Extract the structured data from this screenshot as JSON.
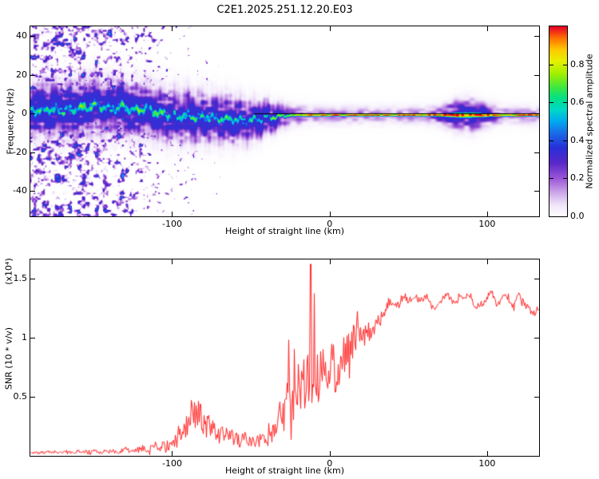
{
  "figure_title": "C2E1.2025.251.12.20.E03",
  "chart_data": [
    {
      "type": "heatmap",
      "title": "C2E1.2025.251.12.20.E03",
      "xlabel": "Height of straight line (km)",
      "ylabel": "Frequency (Hz)",
      "xlim": [
        -190,
        133
      ],
      "ylim": [
        -53,
        45
      ],
      "xticks": [
        "-100",
        "0",
        "100"
      ],
      "xtick_values": [
        -100,
        0,
        100
      ],
      "yticks": [
        "-40",
        "-20",
        "0",
        "20",
        "40"
      ],
      "ytick_values": [
        -40,
        -20,
        0,
        20,
        40
      ],
      "colorbar": {
        "label": "Normalized spectral amplitude",
        "tick_labels": [
          "0.0",
          "0.2",
          "0.4",
          "0.6",
          "0.8"
        ],
        "tick_values": [
          0,
          0.2,
          0.4,
          0.6,
          0.8
        ],
        "range": [
          0,
          1
        ]
      },
      "colormap": [
        [
          0.0,
          "#ffffff"
        ],
        [
          0.06,
          "#f0e4fa"
        ],
        [
          0.13,
          "#c9a0e8"
        ],
        [
          0.2,
          "#9a55d8"
        ],
        [
          0.28,
          "#5a28c8"
        ],
        [
          0.36,
          "#2830d8"
        ],
        [
          0.44,
          "#1b6ee8"
        ],
        [
          0.5,
          "#00aaf0"
        ],
        [
          0.56,
          "#00d8c8"
        ],
        [
          0.62,
          "#00e08a"
        ],
        [
          0.68,
          "#40e840"
        ],
        [
          0.75,
          "#a0f000"
        ],
        [
          0.82,
          "#e8f000"
        ],
        [
          0.88,
          "#ffc800"
        ],
        [
          0.94,
          "#ff7000"
        ],
        [
          1.0,
          "#e80028"
        ]
      ],
      "ridge_centerline": [
        [
          -190,
          1.5
        ],
        [
          -176,
          2.5
        ],
        [
          -166,
          1.2
        ],
        [
          -156,
          3.0
        ],
        [
          -148,
          4.2
        ],
        [
          -140,
          2.2
        ],
        [
          -132,
          3.4
        ],
        [
          -125,
          1.6
        ],
        [
          -118,
          2.6
        ],
        [
          -111,
          1.0
        ],
        [
          -104,
          -0.6
        ],
        [
          -97,
          -1.8
        ],
        [
          -90,
          -1.0
        ],
        [
          -84,
          -2.4
        ],
        [
          -78,
          -1.6
        ],
        [
          -72,
          -2.6
        ],
        [
          -66,
          -3.4
        ],
        [
          -60,
          -3.0
        ],
        [
          -54,
          -4.0
        ],
        [
          -48,
          -3.4
        ],
        [
          -43,
          -2.6
        ],
        [
          -38,
          -2.0
        ],
        [
          -33,
          -1.5
        ],
        [
          -28,
          -1.1
        ],
        [
          -24,
          -0.8
        ],
        [
          -20,
          -0.7
        ],
        [
          -14,
          -0.75
        ],
        [
          0,
          -0.8
        ],
        [
          133,
          -0.8
        ]
      ],
      "ridge_width_hz": [
        [
          -190,
          3.2
        ],
        [
          -150,
          3.4
        ],
        [
          -120,
          3.2
        ],
        [
          -100,
          3.0
        ],
        [
          -80,
          2.9
        ],
        [
          -60,
          2.6
        ],
        [
          -50,
          2.3
        ],
        [
          -40,
          1.8
        ],
        [
          -32,
          1.3
        ],
        [
          -25,
          1.0
        ],
        [
          -15,
          0.85
        ],
        [
          0,
          0.7
        ],
        [
          40,
          0.7
        ],
        [
          70,
          0.8
        ],
        [
          80,
          1.5
        ],
        [
          90,
          1.7
        ],
        [
          100,
          1.1
        ],
        [
          110,
          0.8
        ],
        [
          133,
          0.75
        ]
      ],
      "ridge_amplitude": [
        [
          -190,
          0.58
        ],
        [
          -160,
          0.62
        ],
        [
          -140,
          0.66
        ],
        [
          -120,
          0.64
        ],
        [
          -100,
          0.6
        ],
        [
          -80,
          0.62
        ],
        [
          -60,
          0.58
        ],
        [
          -50,
          0.56
        ],
        [
          -40,
          0.62
        ],
        [
          -30,
          0.72
        ],
        [
          -22,
          0.82
        ],
        [
          -12,
          0.92
        ],
        [
          0,
          0.97
        ],
        [
          133,
          0.97
        ]
      ],
      "halo_scale": [
        [
          -190,
          1
        ],
        [
          -40,
          1
        ],
        [
          -25,
          0.5
        ],
        [
          -10,
          0.35
        ],
        [
          60,
          0.3
        ],
        [
          75,
          0.9
        ],
        [
          95,
          0.9
        ],
        [
          108,
          0.35
        ],
        [
          133,
          0.3
        ]
      ],
      "noise_density": [
        [
          -190,
          0.85
        ],
        [
          -160,
          0.82
        ],
        [
          -140,
          0.78
        ],
        [
          -125,
          0.68
        ],
        [
          -112,
          0.55
        ],
        [
          -100,
          0.45
        ],
        [
          -88,
          0.36
        ],
        [
          -75,
          0.26
        ],
        [
          -62,
          0.16
        ],
        [
          -52,
          0.09
        ],
        [
          -44,
          0.05
        ],
        [
          -36,
          0.02
        ],
        [
          -30,
          0
        ],
        [
          133,
          0
        ]
      ],
      "zero_line_km": [
        -48,
        133
      ]
    },
    {
      "type": "line",
      "title": "",
      "series_color": "#ff2020",
      "xlabel": "Height of straight line (km)",
      "ylabel": "SNR (10 * v/v)",
      "y_scale_label": "(x10⁴)",
      "xlim": [
        -190,
        133
      ],
      "ylim": [
        0,
        1.66
      ],
      "xticks": [
        "-100",
        "0",
        "100"
      ],
      "xtick_values": [
        -100,
        0,
        100
      ],
      "yticks": [
        "0.5",
        "1",
        "1.5"
      ],
      "ytick_values": [
        0.5,
        1,
        1.5
      ],
      "envelope": [
        [
          -190,
          0.03,
          0.02
        ],
        [
          -170,
          0.03,
          0.02
        ],
        [
          -150,
          0.035,
          0.03
        ],
        [
          -135,
          0.04,
          0.03
        ],
        [
          -122,
          0.05,
          0.04
        ],
        [
          -112,
          0.07,
          0.05
        ],
        [
          -104,
          0.09,
          0.07
        ],
        [
          -97,
          0.13,
          0.1
        ],
        [
          -90,
          0.3,
          0.18
        ],
        [
          -84,
          0.38,
          0.2
        ],
        [
          -79,
          0.28,
          0.16
        ],
        [
          -73,
          0.2,
          0.12
        ],
        [
          -66,
          0.17,
          0.1
        ],
        [
          -60,
          0.15,
          0.1
        ],
        [
          -53,
          0.13,
          0.1
        ],
        [
          -47,
          0.12,
          0.1
        ],
        [
          -42,
          0.14,
          0.12
        ],
        [
          -37,
          0.16,
          0.14
        ],
        [
          -32,
          0.3,
          0.22
        ],
        [
          -27,
          0.45,
          0.3
        ],
        [
          -22,
          0.5,
          0.32
        ],
        [
          -17,
          0.6,
          0.38
        ],
        [
          -13,
          0.65,
          0.42
        ],
        [
          -9,
          0.7,
          0.38
        ],
        [
          -5,
          0.72,
          0.32
        ],
        [
          0,
          0.7,
          0.3
        ],
        [
          4,
          0.78,
          0.32
        ],
        [
          9,
          0.85,
          0.3
        ],
        [
          14,
          0.92,
          0.28
        ],
        [
          19,
          1.0,
          0.22
        ],
        [
          24,
          1.08,
          0.16
        ],
        [
          29,
          1.15,
          0.12
        ],
        [
          35,
          1.22,
          0.08
        ],
        [
          42,
          1.26,
          0.06
        ],
        [
          50,
          1.29,
          0.05
        ],
        [
          60,
          1.31,
          0.05
        ],
        [
          70,
          1.33,
          0.04
        ],
        [
          80,
          1.33,
          0.04
        ],
        [
          90,
          1.31,
          0.04
        ],
        [
          97,
          1.27,
          0.05
        ],
        [
          103,
          1.29,
          0.05
        ],
        [
          110,
          1.33,
          0.04
        ],
        [
          120,
          1.31,
          0.04
        ],
        [
          133,
          1.3,
          0.05
        ]
      ],
      "spikes": [
        [
          -12,
          1.62
        ],
        [
          -26,
          0.98
        ]
      ]
    }
  ]
}
